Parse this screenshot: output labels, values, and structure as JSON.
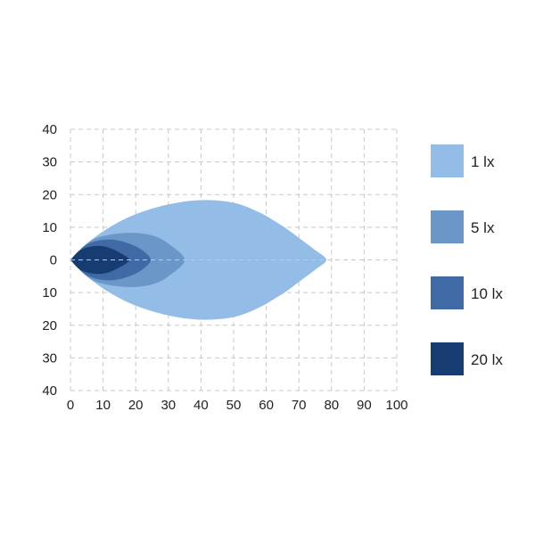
{
  "chart_data": {
    "type": "area",
    "title": "",
    "xlabel": "",
    "ylabel": "",
    "xlim": [
      0,
      100
    ],
    "ylim": [
      -40,
      40
    ],
    "x_ticks": [
      "0",
      "10",
      "20",
      "30",
      "40",
      "50",
      "60",
      "70",
      "80",
      "90",
      "100"
    ],
    "y_ticks": [
      "40",
      "30",
      "20",
      "10",
      "0",
      "10",
      "20",
      "30",
      "40"
    ],
    "grid": true,
    "legend_position": "right",
    "series": [
      {
        "name": "1 lx",
        "color": "#93bde6",
        "upper_outline": [
          [
            0,
            0
          ],
          [
            5,
            5
          ],
          [
            12,
            10
          ],
          [
            20,
            14
          ],
          [
            30,
            17
          ],
          [
            40,
            18.3
          ],
          [
            50,
            17.5
          ],
          [
            58,
            14.5
          ],
          [
            64,
            11
          ],
          [
            67,
            9
          ],
          [
            71,
            6
          ],
          [
            75,
            3
          ],
          [
            78.4,
            0
          ]
        ]
      },
      {
        "name": "5 lx",
        "color": "#6a96c8",
        "upper_outline": [
          [
            0,
            0
          ],
          [
            5,
            5
          ],
          [
            10,
            7.3
          ],
          [
            18,
            8.3
          ],
          [
            25,
            7.5
          ],
          [
            30,
            5
          ],
          [
            35,
            0
          ]
        ]
      },
      {
        "name": "10 lx",
        "color": "#3f6aa5",
        "upper_outline": [
          [
            0,
            0
          ],
          [
            4,
            4
          ],
          [
            8,
            5.8
          ],
          [
            13,
            6.2
          ],
          [
            18,
            5
          ],
          [
            22,
            3
          ],
          [
            24.6,
            0
          ]
        ]
      },
      {
        "name": "20 lx",
        "color": "#173c72",
        "upper_outline": [
          [
            0,
            0
          ],
          [
            3,
            3
          ],
          [
            7,
            4.2
          ],
          [
            11,
            4
          ],
          [
            15,
            2.3
          ],
          [
            18,
            0
          ]
        ]
      }
    ],
    "symmetric_about_y0": true
  }
}
